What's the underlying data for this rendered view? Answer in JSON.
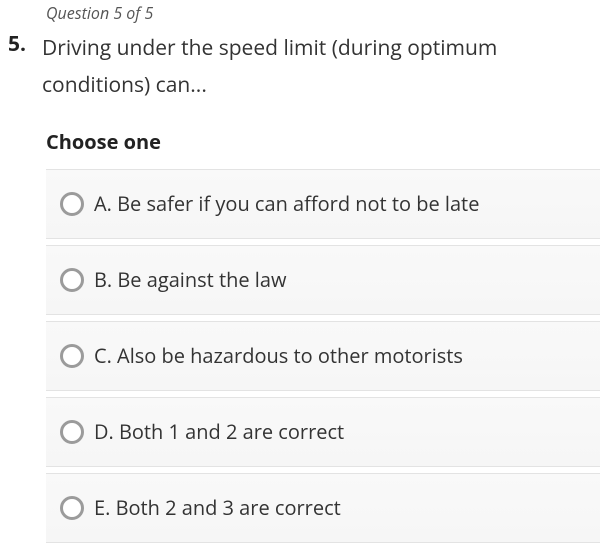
{
  "progress": "Question 5 of 5",
  "question_number": "5.",
  "question_text": "Driving under the speed limit (during optimum conditions) can...",
  "choose_label": "Choose one",
  "options": [
    {
      "text": "A. Be safer if you can afford not to be late"
    },
    {
      "text": "B. Be against the law"
    },
    {
      "text": "C. Also be hazardous to other motorists"
    },
    {
      "text": "D. Both 1 and 2 are correct"
    },
    {
      "text": "E. Both 2 and 3 are correct"
    }
  ],
  "colors": {
    "text": "#333333",
    "muted": "#555555",
    "option_bg": "#f7f7f7",
    "option_border": "#e3e3e3",
    "radio_border": "#9b9b9b",
    "background": "#ffffff"
  },
  "typography": {
    "progress_fontsize": 16,
    "question_fontsize": 21,
    "choose_fontsize": 20,
    "option_fontsize": 20
  }
}
